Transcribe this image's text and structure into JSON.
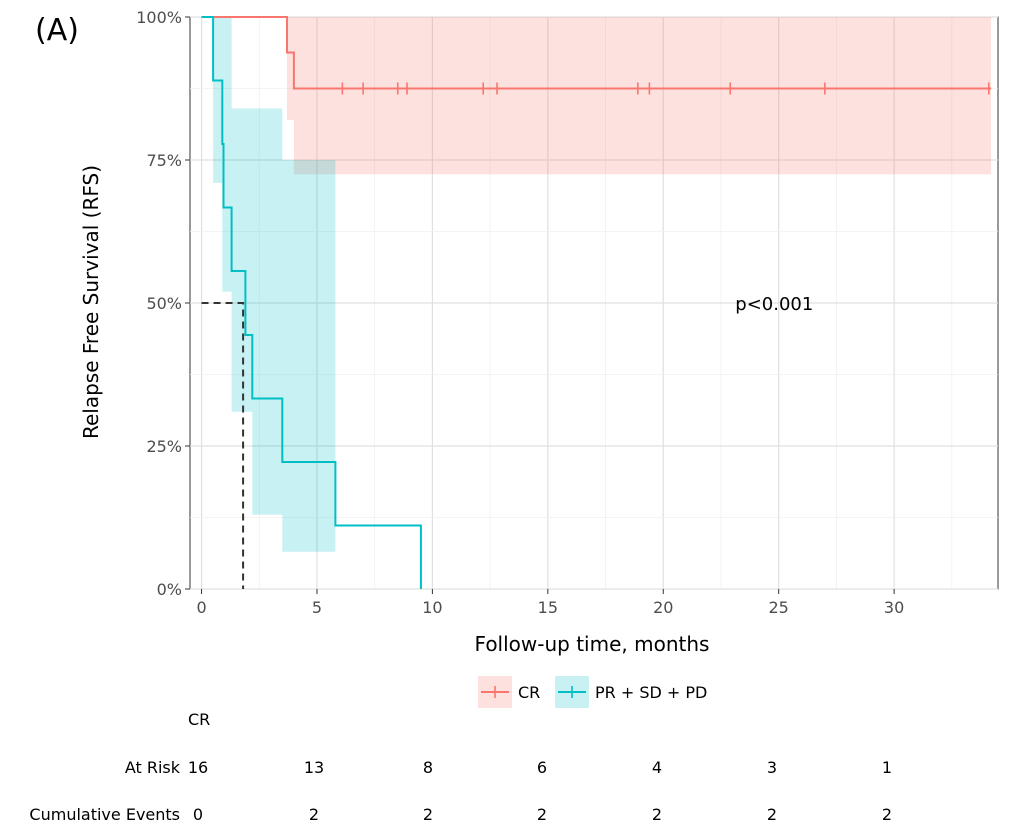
{
  "chart_data": {
    "type": "line",
    "panel_label": "(A)",
    "xlabel": "Follow-up time, months",
    "ylabel": "Relapse Free Survival (RFS)",
    "xlim": [
      -0.5,
      34.5
    ],
    "ylim": [
      0,
      1
    ],
    "x_ticks": [
      0,
      5,
      10,
      15,
      20,
      25,
      30
    ],
    "x_tick_labels": [
      "0",
      "5",
      "10",
      "15",
      "20",
      "25",
      "30"
    ],
    "y_ticks": [
      0,
      0.25,
      0.5,
      0.75,
      1.0
    ],
    "y_tick_labels": [
      "0%",
      "25%",
      "50%",
      "75%",
      "100%"
    ],
    "grid": true,
    "annotation": "p<0.001",
    "annotation_at": [
      23.9,
      0.5
    ],
    "median_line": {
      "x": 1.8,
      "y": 0.5
    },
    "series": [
      {
        "name": "CR",
        "color": "#F8766D",
        "band_color": "#F8766D",
        "steps": [
          [
            0,
            1.0
          ],
          [
            3.7,
            1.0
          ],
          [
            3.7,
            0.938
          ],
          [
            4.0,
            0.938
          ],
          [
            4.0,
            0.875
          ],
          [
            34.2,
            0.875
          ]
        ],
        "ci": [
          [
            0,
            1.0,
            1.0
          ],
          [
            3.7,
            0.82,
            1.0
          ],
          [
            4.0,
            0.725,
            1.0
          ],
          [
            34.2,
            0.725,
            1.0
          ]
        ],
        "censor_x": [
          6.1,
          7.0,
          8.5,
          8.9,
          12.2,
          12.8,
          18.9,
          19.4,
          22.9,
          27.0,
          34.1
        ]
      },
      {
        "name": "PR + SD + PD",
        "color": "#00BFC4",
        "band_color": "#00BFC4",
        "steps": [
          [
            0,
            1.0
          ],
          [
            0.5,
            1.0
          ],
          [
            0.5,
            0.889
          ],
          [
            0.9,
            0.889
          ],
          [
            0.9,
            0.778
          ],
          [
            0.95,
            0.778
          ],
          [
            0.95,
            0.667
          ],
          [
            1.3,
            0.667
          ],
          [
            1.3,
            0.556
          ],
          [
            1.9,
            0.556
          ],
          [
            1.9,
            0.444
          ],
          [
            2.2,
            0.444
          ],
          [
            2.2,
            0.333
          ],
          [
            3.5,
            0.333
          ],
          [
            3.5,
            0.222
          ],
          [
            5.8,
            0.222
          ],
          [
            5.8,
            0.111
          ],
          [
            9.5,
            0.111
          ],
          [
            9.5,
            0.0
          ]
        ],
        "ci": [
          [
            0,
            1.0,
            1.0
          ],
          [
            0.5,
            0.71,
            1.0
          ],
          [
            0.9,
            0.52,
            1.0
          ],
          [
            1.3,
            0.42,
            0.96
          ],
          [
            1.3,
            0.31,
            0.84
          ],
          [
            1.9,
            0.31,
            0.84
          ],
          [
            2.2,
            0.13,
            0.84
          ],
          [
            3.5,
            0.065,
            0.75
          ],
          [
            5.8,
            0.065,
            0.75
          ]
        ],
        "censor_x": []
      }
    ],
    "legend": {
      "position": "bottom",
      "items": [
        {
          "label": "CR",
          "color": "#F8766D"
        },
        {
          "label": "PR + SD + PD",
          "color": "#00BFC4"
        }
      ]
    },
    "risk_table": {
      "group_label": "CR",
      "rows": [
        {
          "label": "At Risk",
          "values": [
            16,
            13,
            8,
            6,
            4,
            3,
            1
          ]
        },
        {
          "label": "Cumulative Events",
          "values": [
            0,
            2,
            2,
            2,
            2,
            2,
            2
          ]
        }
      ]
    }
  }
}
